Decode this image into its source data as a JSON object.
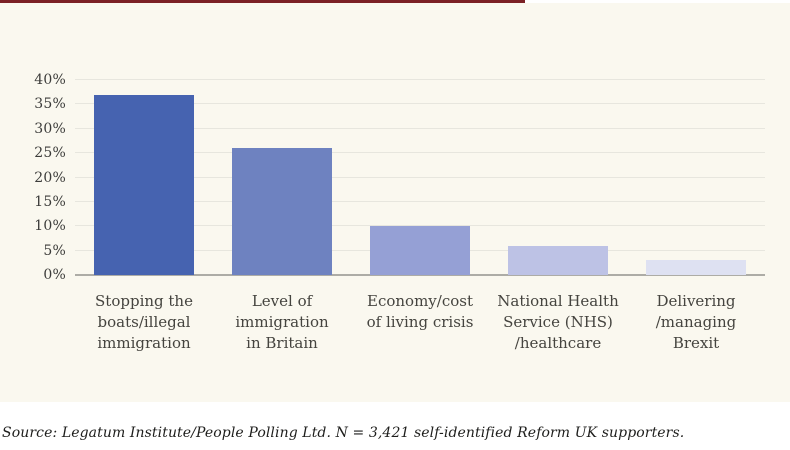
{
  "accent": {
    "top_rule_color": "#7b2125"
  },
  "canvas": {
    "background": "#faf8ef"
  },
  "chart_data": {
    "type": "bar",
    "title": "",
    "xlabel": "",
    "ylabel": "",
    "categories": [
      "Stopping the boats/illegal immigration",
      "Level of immigration in Britain",
      "Economy/cost of living crisis",
      "National Health Service (NHS) /healthcare",
      "Delivering /managing Brexit"
    ],
    "category_label_lines": [
      [
        "Stopping the",
        "boats/illegal",
        "immigration"
      ],
      [
        "Level of",
        "immigration",
        "in Britain"
      ],
      [
        "Economy/cost",
        "of living crisis"
      ],
      [
        "National Health",
        "Service (NHS)",
        "/healthcare"
      ],
      [
        "Delivering",
        "/managing",
        "Brexit"
      ]
    ],
    "values": [
      37,
      26,
      10,
      6,
      3
    ],
    "bar_colors": [
      "#4663b0",
      "#6e82c0",
      "#95a0d5",
      "#bdc2e5",
      "#dee1f2"
    ],
    "ylim": [
      0,
      40
    ],
    "yticks": [
      0,
      5,
      10,
      15,
      20,
      25,
      30,
      35,
      40
    ],
    "ytick_suffix": "%",
    "grid": "horizontal",
    "legend": "none",
    "axis_text_color": "#3d3d3b",
    "gridline_color": "#e7e6de"
  },
  "source": {
    "text": "Source: Legatum Institute/People Polling Ltd. N = 3,421 self-identified Reform UK supporters."
  }
}
